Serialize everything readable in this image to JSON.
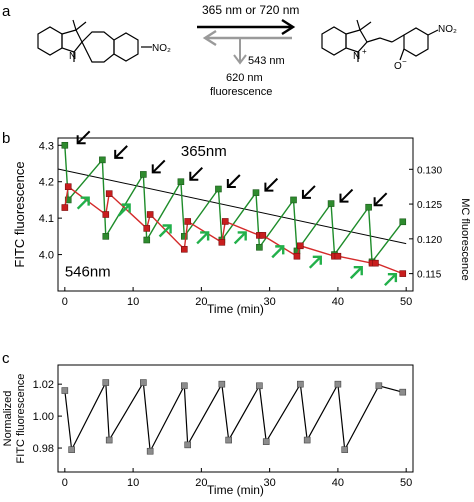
{
  "panels": {
    "a": {
      "label": "a",
      "forward_arrow_label": "365 nm or 720 nm",
      "reverse_arrow_label": "543 nm",
      "fluorescence_wavelength": "620 nm",
      "fluorescence_label": "fluorescence",
      "left_molecule_labels": {
        "nitrogen": "N",
        "nitro": "NO₂"
      },
      "right_molecule_labels": {
        "nitrogen": "N",
        "charge": "+",
        "oxygen": "O",
        "charge_o": "−",
        "nitro": "NO₂"
      }
    },
    "b": {
      "label": "b"
    },
    "c": {
      "label": "c"
    }
  },
  "colors": {
    "green_series": "#1e8c2a",
    "green_marker": "#2e8b2e",
    "red_series": "#d42a2a",
    "red_marker": "#c81e1e",
    "black_arrow": "#000000",
    "green_arrow": "#22b04a",
    "grey_arrow": "#9a9a9a",
    "c_marker": "#8c8c8c"
  },
  "chart_data": [
    {
      "type": "line",
      "panel": "b",
      "xlabel": "Time (min)",
      "ylabel_left": "FITC fluorescence",
      "ylabel_right": "MC fluorescence",
      "xlim": [
        -1,
        51
      ],
      "ylim_left": [
        3.9,
        4.32
      ],
      "ylim_right": [
        0.1125,
        0.1345
      ],
      "xticks": [
        0,
        10,
        20,
        30,
        40,
        50
      ],
      "yticks_left": [
        4.0,
        4.1,
        4.2,
        4.3
      ],
      "yticks_right": [
        0.115,
        0.12,
        0.125,
        0.13
      ],
      "series": [
        {
          "axis": "left",
          "marker": "square",
          "x": [
            0,
            0.5,
            5.5,
            6,
            11.5,
            12,
            17,
            17.5,
            22.5,
            23,
            28,
            28.5,
            33.5,
            34,
            39,
            39.5,
            44.5,
            45,
            49.5
          ],
          "y": [
            4.3,
            4.15,
            4.26,
            4.05,
            4.22,
            4.04,
            4.2,
            4.05,
            4.18,
            4.04,
            4.17,
            4.02,
            4.15,
            4.01,
            4.14,
            4.0,
            4.13,
            3.98,
            4.09
          ]
        },
        {
          "axis": "left",
          "marker": "none",
          "x": [
            -1,
            50
          ],
          "y": [
            4.235,
            4.03
          ]
        },
        {
          "axis": "right",
          "marker": "square",
          "x": [
            0,
            0.5,
            6,
            6.5,
            12,
            12.5,
            17.5,
            18,
            23,
            23.5,
            28.5,
            29,
            34,
            34.5,
            39.5,
            40,
            45,
            45.5,
            49.5
          ],
          "y": [
            0.1245,
            0.1275,
            0.1235,
            0.1265,
            0.1215,
            0.1235,
            0.1185,
            0.1225,
            0.1195,
            0.1225,
            0.1205,
            0.1205,
            0.1175,
            0.119,
            0.1175,
            0.1175,
            0.1165,
            0.1165,
            0.115
          ]
        }
      ],
      "annotations": [
        {
          "text": "365nm",
          "x": 17,
          "y": 4.27
        },
        {
          "text": "546nm",
          "x": 0,
          "y": 3.94
        }
      ],
      "black_arrow_times": [
        1,
        6.5,
        12,
        17.5,
        23,
        28.5,
        34,
        39.5,
        44.5
      ],
      "green_arrow_times": [
        1,
        7,
        13,
        18.5,
        24,
        29.5,
        35,
        41,
        46
      ]
    },
    {
      "type": "line",
      "panel": "c",
      "xlabel": "Time (min)",
      "ylabel": "Normalized\nFITC fluorescence",
      "xlim": [
        -1,
        51
      ],
      "ylim": [
        0.965,
        1.032
      ],
      "xticks": [
        0,
        10,
        20,
        30,
        40,
        50
      ],
      "yticks": [
        0.98,
        1.0,
        1.02
      ],
      "series": [
        {
          "marker": "square",
          "x": [
            0,
            1,
            6,
            6.5,
            11.5,
            12.5,
            17.5,
            18,
            23,
            24,
            28.5,
            29.5,
            34.5,
            35.5,
            40,
            41,
            46,
            49.5
          ],
          "y": [
            1.016,
            0.979,
            1.021,
            0.985,
            1.021,
            0.978,
            1.019,
            0.982,
            1.02,
            0.985,
            1.019,
            0.984,
            1.02,
            0.985,
            1.02,
            0.979,
            1.019,
            1.015
          ]
        }
      ]
    }
  ]
}
